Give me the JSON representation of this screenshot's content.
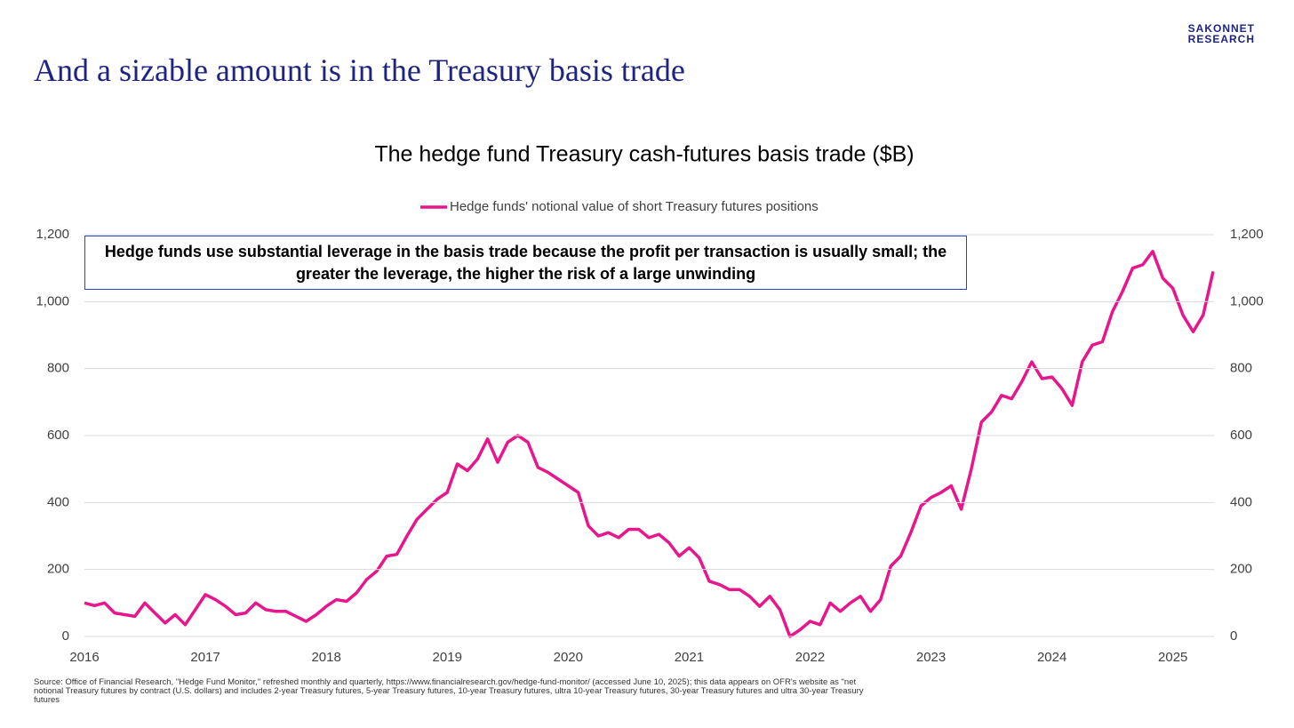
{
  "header": {
    "title": "And a sizable amount is in the Treasury basis trade",
    "logo": [
      "SAKONNET",
      "RESEARCH"
    ]
  },
  "chart_data": {
    "type": "line",
    "title": "The hedge fund Treasury cash-futures basis trade ($B)",
    "annotation": "Hedge funds use substantial leverage in the basis trade because the profit per transaction is usually small; the greater the leverage, the higher the risk of a large unwinding",
    "legend": "top",
    "grid": true,
    "x": [
      2016,
      2016.083,
      2016.167,
      2016.25,
      2016.333,
      2016.417,
      2016.5,
      2016.583,
      2016.667,
      2016.75,
      2016.833,
      2016.917,
      2017,
      2017.083,
      2017.167,
      2017.25,
      2017.333,
      2017.417,
      2017.5,
      2017.583,
      2017.667,
      2017.75,
      2017.833,
      2017.917,
      2018,
      2018.083,
      2018.167,
      2018.25,
      2018.333,
      2018.417,
      2018.5,
      2018.583,
      2018.667,
      2018.75,
      2018.833,
      2018.917,
      2019,
      2019.083,
      2019.167,
      2019.25,
      2019.333,
      2019.417,
      2019.5,
      2019.583,
      2019.667,
      2019.75,
      2019.833,
      2019.917,
      2020,
      2020.083,
      2020.167,
      2020.25,
      2020.333,
      2020.417,
      2020.5,
      2020.583,
      2020.667,
      2020.75,
      2020.833,
      2020.917,
      2021,
      2021.083,
      2021.167,
      2021.25,
      2021.333,
      2021.417,
      2021.5,
      2021.583,
      2021.667,
      2021.75,
      2021.833,
      2021.917,
      2022,
      2022.083,
      2022.167,
      2022.25,
      2022.333,
      2022.417,
      2022.5,
      2022.583,
      2022.667,
      2022.75,
      2022.833,
      2022.917,
      2023,
      2023.083,
      2023.167,
      2023.25,
      2023.333,
      2023.417,
      2023.5,
      2023.583,
      2023.667,
      2023.75,
      2023.833,
      2023.917,
      2024,
      2024.083,
      2024.167,
      2024.25,
      2024.333,
      2024.417,
      2024.5,
      2024.583,
      2024.667,
      2024.75,
      2024.833,
      2024.917,
      2025,
      2025.083,
      2025.167,
      2025.25,
      2025.333
    ],
    "series": [
      {
        "name": "Hedge funds' notional value of short Treasury futures positions",
        "color": "#e8168c",
        "values": [
          100,
          92,
          100,
          70,
          65,
          60,
          100,
          70,
          40,
          65,
          35,
          80,
          125,
          110,
          90,
          65,
          70,
          100,
          80,
          75,
          75,
          60,
          45,
          65,
          90,
          110,
          105,
          130,
          170,
          195,
          240,
          245,
          300,
          350,
          380,
          410,
          430,
          515,
          495,
          530,
          590,
          520,
          580,
          600,
          580,
          505,
          490,
          470,
          450,
          430,
          330,
          300,
          310,
          295,
          320,
          320,
          295,
          305,
          280,
          240,
          265,
          235,
          165,
          155,
          140,
          140,
          120,
          90,
          120,
          80,
          0,
          20,
          45,
          35,
          100,
          75,
          100,
          120,
          75,
          110,
          210,
          240,
          310,
          390,
          415,
          430,
          450,
          380,
          500,
          640,
          670,
          720,
          710,
          760,
          820,
          770,
          775,
          740,
          690,
          820,
          870,
          880,
          970,
          1030,
          1100,
          1110,
          1150,
          1070,
          1040,
          960,
          910,
          960,
          1090
        ]
      }
    ],
    "xlim": [
      2016,
      2025.34
    ],
    "xticks": [
      2016,
      2017,
      2018,
      2019,
      2020,
      2021,
      2022,
      2023,
      2024,
      2025
    ],
    "ylim": [
      0,
      1200
    ],
    "yticks": [
      0,
      200,
      400,
      600,
      800,
      {
        "value": 1000,
        "label": "1,000"
      },
      {
        "value": 1200,
        "label": "1,200"
      }
    ],
    "y2lim": [
      0,
      1200
    ],
    "y2ticks": [
      0,
      200,
      400,
      600,
      800,
      {
        "value": 1000,
        "label": "1,000"
      },
      {
        "value": 1200,
        "label": "1,200"
      }
    ]
  },
  "source": "Source: Office of Financial Research, \"Hedge Fund Monitor,\" refreshed monthly and quarterly, https://www.financialresearch.gov/hedge-fund-monitor/ (accessed June 10, 2025); this data appears on OFR's website as \"net notional Treasury futures by contract (U.S. dollars) and includes 2-year Treasury futures, 5-year Treasury futures, 10-year Treasury futures, ultra 10-year Treasury futures, 30-year Treasury futures and ultra 30-year Treasury futures"
}
